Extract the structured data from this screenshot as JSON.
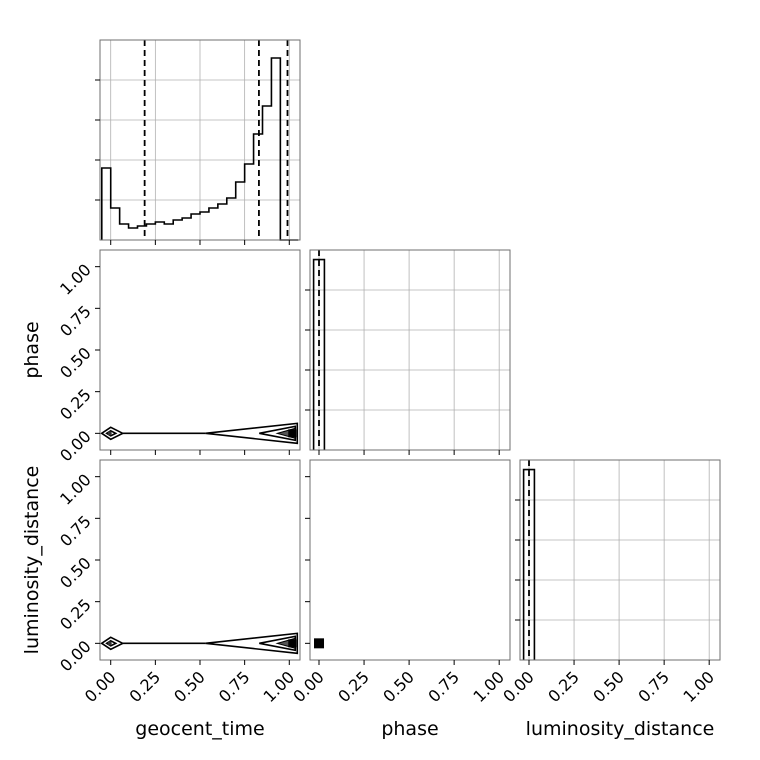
{
  "chart_data": {
    "type": "corner",
    "parameters": [
      {
        "label": "geocent_time"
      },
      {
        "label": "phase"
      },
      {
        "label": "luminosity_distance"
      }
    ],
    "tick_values": [
      0.0,
      0.25,
      0.5,
      0.75,
      1.0
    ],
    "tick_labels": [
      "0.00",
      "0.25",
      "0.50",
      "0.75",
      "1.00"
    ],
    "grid": true,
    "marginals": [
      {
        "parameter": "geocent_time",
        "xlim": [
          -0.06,
          1.06
        ],
        "ylim": [
          0,
          1
        ],
        "bin_edges": [
          -0.05,
          0.0,
          0.05,
          0.1,
          0.15,
          0.2,
          0.25,
          0.3,
          0.35,
          0.4,
          0.45,
          0.5,
          0.55,
          0.6,
          0.65,
          0.7,
          0.75,
          0.8,
          0.85,
          0.9,
          0.95,
          1.0,
          1.05
        ],
        "heights": [
          0.36,
          0.16,
          0.08,
          0.06,
          0.07,
          0.08,
          0.09,
          0.08,
          0.1,
          0.11,
          0.13,
          0.14,
          0.16,
          0.18,
          0.21,
          0.29,
          0.38,
          0.53,
          0.67,
          0.91,
          0.0,
          0.0
        ],
        "quantiles": [
          0.19,
          0.83,
          0.99
        ]
      },
      {
        "parameter": "phase",
        "xlim": [
          -0.05,
          1.06
        ],
        "ylim": [
          0,
          1.05
        ],
        "bin_edges": [
          -0.03,
          0.0,
          0.03
        ],
        "heights": [
          1.0,
          1.0
        ],
        "quantiles": [
          0.0
        ]
      },
      {
        "parameter": "luminosity_distance",
        "xlim": [
          -0.05,
          1.06
        ],
        "ylim": [
          0,
          1.05
        ],
        "bin_edges": [
          -0.03,
          0.0,
          0.03
        ],
        "heights": [
          1.0,
          1.0
        ],
        "quantiles": [
          0.0
        ]
      }
    ],
    "joint": [
      {
        "x": "geocent_time",
        "y": "phase",
        "xlim": [
          -0.06,
          1.06
        ],
        "ylim": [
          -0.1,
          1.1
        ]
      },
      {
        "x": "geocent_time",
        "y": "luminosity_distance",
        "xlim": [
          -0.06,
          1.06
        ],
        "ylim": [
          -0.1,
          1.1
        ]
      },
      {
        "x": "phase",
        "y": "luminosity_distance",
        "xlim": [
          -0.05,
          1.06
        ],
        "ylim": [
          -0.1,
          1.1
        ],
        "point": [
          0.0,
          0.0
        ]
      }
    ]
  }
}
